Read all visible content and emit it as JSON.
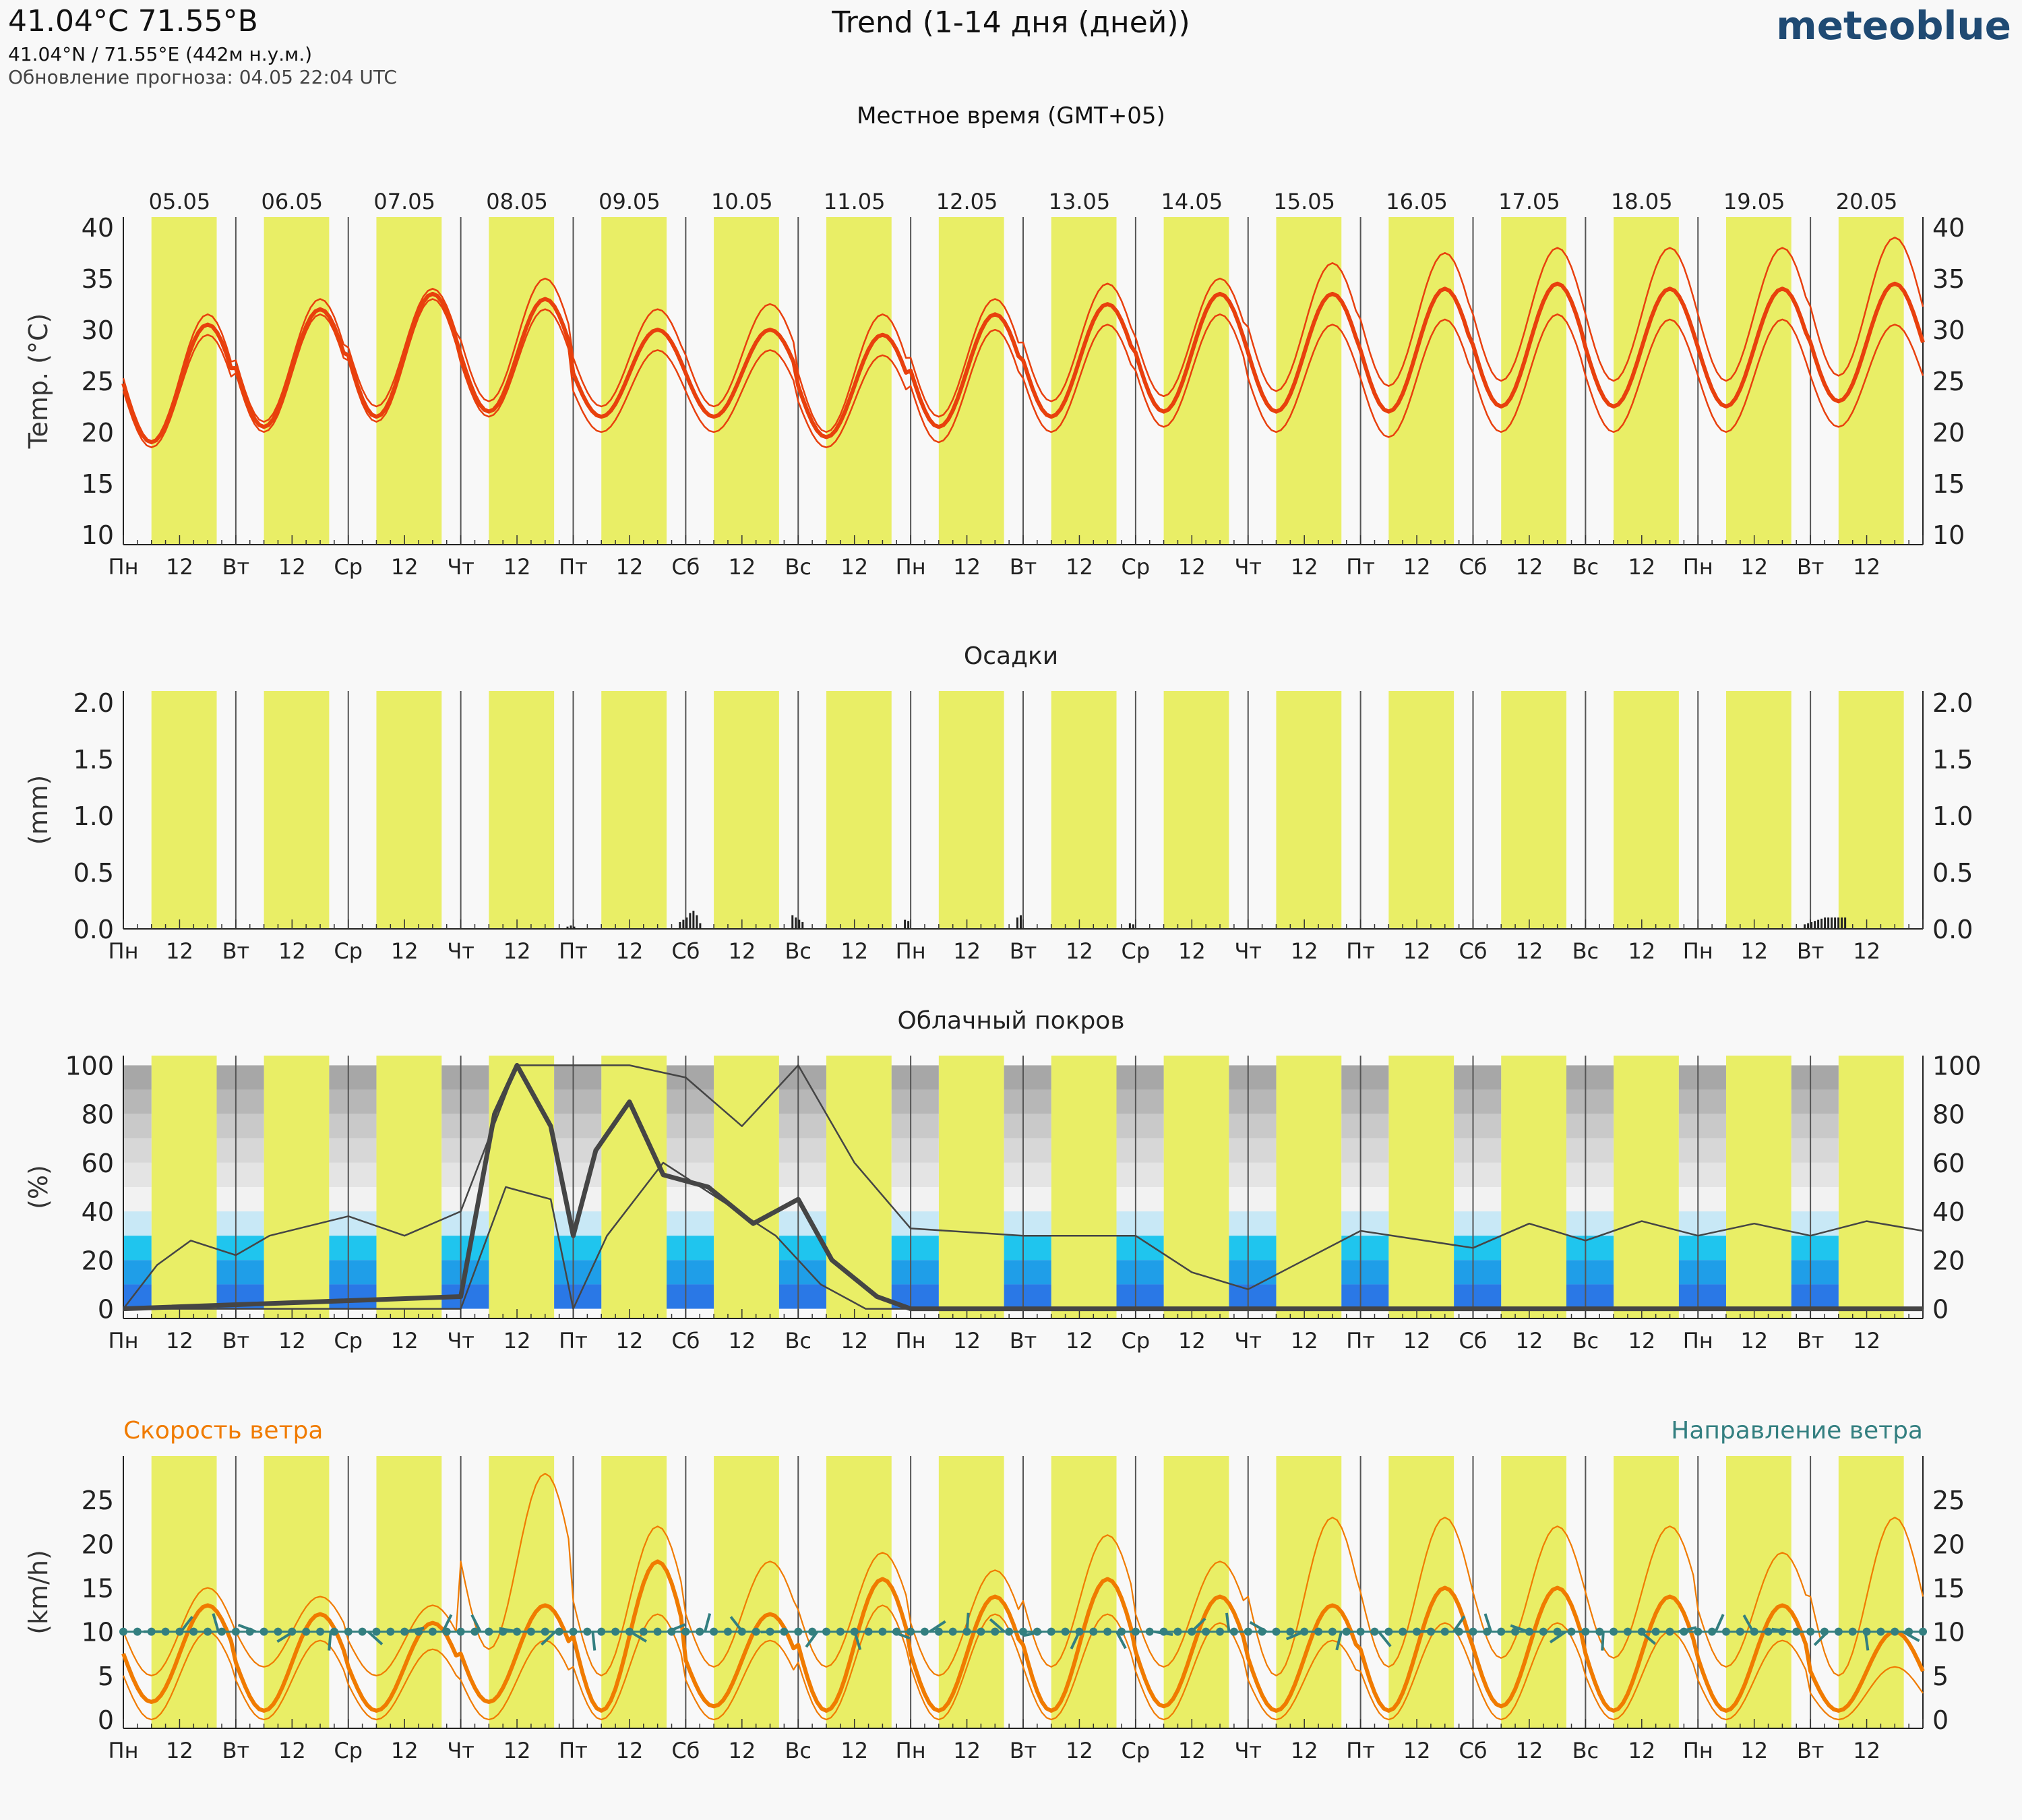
{
  "header": {
    "location": "41.04°C 71.55°В",
    "coords": "41.04°N / 71.55°E (442м н.у.м.)",
    "update": "Обновление прогноза: 04.05 22:04 UTC",
    "title": "Trend (1-14 дня (дней))",
    "brand": "meteoblue",
    "timezone_label": "Местное время (GMT+05)"
  },
  "chart_data": [
    {
      "type": "line",
      "id": "temperature",
      "ylabel": "Temp. (°C)",
      "ylim": [
        9,
        41
      ],
      "yticks": [
        10,
        15,
        20,
        25,
        30,
        35,
        40
      ],
      "dates": [
        "05.05",
        "06.05",
        "07.05",
        "08.05",
        "09.05",
        "10.05",
        "11.05",
        "12.05",
        "13.05",
        "14.05",
        "15.05",
        "16.05",
        "17.05",
        "18.05",
        "19.05",
        "20.05"
      ],
      "weekday_labels": [
        "Пн",
        "Вт",
        "Ср",
        "Чт",
        "Пт",
        "Сб",
        "Вс",
        "Пн",
        "Вт",
        "Ср",
        "Чт",
        "Пт",
        "Сб",
        "Вс",
        "Пн",
        "Вт"
      ],
      "noon_label": "12",
      "series": [
        {
          "role": "mean",
          "daily_min": [
            19,
            20.5,
            21.5,
            22,
            21.5,
            21.5,
            19.5,
            20.5,
            21.5,
            22,
            22,
            22,
            22.5,
            22.5,
            22.5,
            23
          ],
          "daily_max": [
            30.5,
            32,
            33.5,
            33,
            30,
            30,
            29.5,
            31.5,
            32.5,
            33.5,
            33.5,
            34,
            34.5,
            34,
            34,
            34.5
          ]
        },
        {
          "role": "upper",
          "daily_min": [
            19,
            21,
            22.5,
            23,
            22.5,
            22.5,
            20,
            21.5,
            23,
            23.5,
            24,
            24.5,
            25,
            25,
            25,
            25.5
          ],
          "daily_max": [
            31.5,
            33,
            34,
            35,
            32,
            32.5,
            31.5,
            33,
            34.5,
            35,
            36.5,
            37.5,
            38,
            38,
            38,
            39
          ]
        },
        {
          "role": "lower",
          "daily_min": [
            18.5,
            20,
            21,
            21.5,
            20,
            20,
            18.5,
            19,
            20,
            20.5,
            20,
            19.5,
            20,
            20,
            20,
            20.5
          ],
          "daily_max": [
            29.5,
            31.5,
            33,
            32,
            28,
            28,
            27.5,
            30,
            30.5,
            31.5,
            30.5,
            31,
            31.5,
            31,
            31,
            30.5
          ]
        }
      ]
    },
    {
      "type": "bar",
      "id": "precipitation",
      "title": "Осадки",
      "ylabel": "(mm)",
      "ylim": [
        0,
        2.1
      ],
      "yticks": [
        "0.0",
        "0.5",
        "1.0",
        "1.5",
        "2.0"
      ],
      "bars": [
        {
          "day": 4.0,
          "values": [
            0.02,
            0.03,
            0.02
          ]
        },
        {
          "day": 5.0,
          "values": [
            0.06,
            0.08,
            0.1,
            0.14,
            0.16,
            0.12,
            0.05
          ]
        },
        {
          "day": 6.0,
          "values": [
            0.12,
            0.1,
            0.08,
            0.06
          ]
        },
        {
          "day": 7.0,
          "values": [
            0.08,
            0.07
          ]
        },
        {
          "day": 8.0,
          "values": [
            0.1,
            0.12
          ]
        },
        {
          "day": 9.0,
          "values": [
            0.05,
            0.04
          ]
        },
        {
          "day": 15.0,
          "values": [
            0.04,
            0.05,
            0.06,
            0.07,
            0.08,
            0.09,
            0.1,
            0.1,
            0.1,
            0.1,
            0.1,
            0.1,
            0.1
          ]
        }
      ]
    },
    {
      "type": "line",
      "id": "cloud_cover",
      "title": "Облачный покров",
      "ylabel": "(%)",
      "ylim": [
        -4,
        104
      ],
      "yticks": [
        0,
        20,
        40,
        60,
        80,
        100
      ],
      "series": [
        {
          "role": "total_mean",
          "points": [
            [
              0,
              0
            ],
            [
              3,
              5
            ],
            [
              3.3,
              80
            ],
            [
              3.5,
              100
            ],
            [
              3.8,
              75
            ],
            [
              4,
              30
            ],
            [
              4.2,
              65
            ],
            [
              4.5,
              85
            ],
            [
              4.8,
              55
            ],
            [
              5.2,
              50
            ],
            [
              5.6,
              35
            ],
            [
              6,
              45
            ],
            [
              6.3,
              20
            ],
            [
              6.7,
              5
            ],
            [
              7,
              0
            ],
            [
              16,
              0
            ]
          ]
        },
        {
          "role": "total_upper",
          "points": [
            [
              0,
              0
            ],
            [
              0.3,
              18
            ],
            [
              0.6,
              28
            ],
            [
              1,
              22
            ],
            [
              1.3,
              30
            ],
            [
              2,
              38
            ],
            [
              2.5,
              30
            ],
            [
              3,
              40
            ],
            [
              3.5,
              100
            ],
            [
              4,
              100
            ],
            [
              4.5,
              100
            ],
            [
              5,
              95
            ],
            [
              5.5,
              75
            ],
            [
              6,
              100
            ],
            [
              6.5,
              60
            ],
            [
              7,
              33
            ],
            [
              8,
              30
            ],
            [
              9,
              30
            ],
            [
              9.5,
              15
            ],
            [
              10,
              8
            ],
            [
              10.5,
              20
            ],
            [
              11,
              32
            ],
            [
              12,
              25
            ],
            [
              12.5,
              35
            ],
            [
              13,
              28
            ],
            [
              13.5,
              36
            ],
            [
              14,
              30
            ],
            [
              14.5,
              35
            ],
            [
              15,
              30
            ],
            [
              15.5,
              36
            ],
            [
              16,
              32
            ]
          ]
        },
        {
          "role": "total_lower",
          "points": [
            [
              0,
              0
            ],
            [
              3,
              0
            ],
            [
              3.4,
              50
            ],
            [
              3.8,
              45
            ],
            [
              4,
              0
            ],
            [
              4.3,
              30
            ],
            [
              4.8,
              60
            ],
            [
              5.3,
              45
            ],
            [
              5.8,
              30
            ],
            [
              6.2,
              10
            ],
            [
              6.6,
              0
            ],
            [
              16,
              0
            ]
          ]
        }
      ]
    },
    {
      "type": "line",
      "id": "wind",
      "ylabel": "(km/h)",
      "ylim": [
        -1,
        30
      ],
      "yticks": [
        0,
        5,
        10,
        15,
        20,
        25
      ],
      "legend_left": "Скорость ветра",
      "legend_right": "Направление ветра",
      "series": [
        {
          "role": "mean",
          "daily_min": [
            2,
            1,
            1,
            2,
            1,
            1.5,
            1,
            1,
            1,
            1.5,
            1,
            1,
            1.5,
            1,
            1,
            1
          ],
          "daily_max": [
            13,
            12,
            11,
            13,
            18,
            12,
            16,
            14,
            16,
            14,
            13,
            15,
            15,
            14,
            13,
            10
          ]
        },
        {
          "role": "upper",
          "daily_min": [
            5,
            6,
            5,
            8,
            5,
            6,
            6,
            5,
            6,
            6,
            5,
            6,
            7,
            7,
            6,
            5
          ],
          "daily_max": [
            15,
            14,
            13,
            28,
            22,
            18,
            19,
            17,
            21,
            18,
            23,
            23,
            22,
            22,
            19,
            23
          ]
        },
        {
          "role": "lower",
          "daily_min": [
            0,
            0,
            0,
            0,
            0,
            0,
            0,
            0,
            0,
            0,
            0,
            0,
            0,
            0,
            0,
            0
          ],
          "daily_max": [
            10,
            9,
            8,
            9,
            12,
            9,
            13,
            12,
            12,
            11,
            9,
            11,
            11,
            10,
            9,
            6
          ]
        }
      ]
    }
  ],
  "colors": {
    "daylight": "#e9ee66",
    "temp_line": "#e8400d",
    "wind_speed": "#f07b00",
    "wind_dir": "#337f80",
    "cloud_line": "#454545",
    "precip": "#222222"
  }
}
